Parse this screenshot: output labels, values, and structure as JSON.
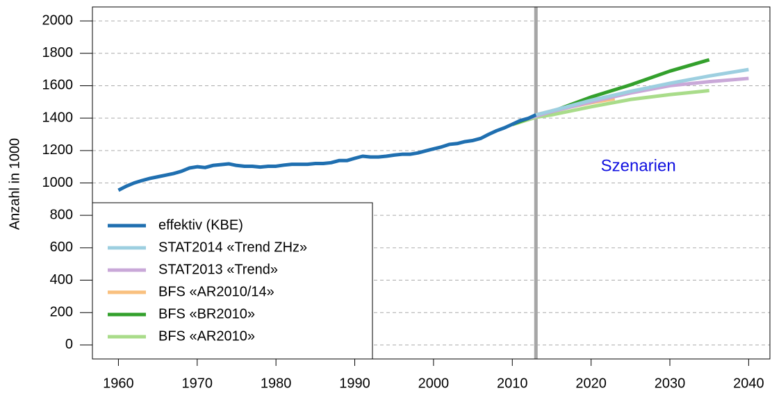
{
  "chart_data": {
    "type": "line",
    "y_label": "Anzahl in 1000",
    "annotation": {
      "text": "Szenarien",
      "x": 2026,
      "y": 1100,
      "color": "#1010e0"
    },
    "vline": {
      "x": 2013,
      "color": "#a6a6a6"
    },
    "xlim": [
      1956.7,
      2042.7
    ],
    "ylim": [
      -86,
      2086
    ],
    "xticks": [
      1960,
      1970,
      1980,
      1990,
      2000,
      2010,
      2020,
      2030,
      2040
    ],
    "yticks": [
      0,
      200,
      400,
      600,
      800,
      1000,
      1200,
      1400,
      1600,
      1800,
      2000
    ],
    "grid": true,
    "legend": "lower left",
    "series": [
      {
        "name": "effektiv (KBE)",
        "color": "#1f6fb0",
        "x": [
          1960,
          1961,
          1962,
          1963,
          1964,
          1965,
          1966,
          1967,
          1968,
          1969,
          1970,
          1971,
          1972,
          1973,
          1974,
          1975,
          1976,
          1977,
          1978,
          1979,
          1980,
          1981,
          1982,
          1983,
          1984,
          1985,
          1986,
          1987,
          1988,
          1989,
          1990,
          1991,
          1992,
          1993,
          1994,
          1995,
          1996,
          1997,
          1998,
          1999,
          2000,
          2001,
          2002,
          2003,
          2004,
          2005,
          2006,
          2007,
          2008,
          2009,
          2010,
          2011,
          2012,
          2013
        ],
        "values": [
          955,
          980,
          1000,
          1015,
          1028,
          1038,
          1048,
          1058,
          1072,
          1092,
          1100,
          1095,
          1108,
          1113,
          1118,
          1108,
          1103,
          1103,
          1098,
          1103,
          1103,
          1110,
          1115,
          1115,
          1115,
          1120,
          1120,
          1125,
          1138,
          1138,
          1152,
          1165,
          1160,
          1160,
          1165,
          1172,
          1177,
          1177,
          1185,
          1198,
          1210,
          1222,
          1238,
          1243,
          1255,
          1262,
          1275,
          1300,
          1322,
          1340,
          1362,
          1385,
          1398,
          1420
        ]
      },
      {
        "name": "STAT2014 «Trend ZHz»",
        "color": "#9dcfe0",
        "x": [
          2013,
          2015,
          2020,
          2025,
          2030,
          2035,
          2040
        ],
        "values": [
          1420,
          1445,
          1510,
          1565,
          1615,
          1660,
          1700
        ]
      },
      {
        "name": "STAT2013 «Trend»",
        "color": "#c9a8d8",
        "x": [
          2012,
          2015,
          2020,
          2025,
          2030,
          2035,
          2040
        ],
        "values": [
          1398,
          1440,
          1500,
          1555,
          1600,
          1625,
          1645
        ]
      },
      {
        "name": "BFS «AR2010/14»",
        "color": "#f9c07f",
        "x": [
          2013,
          2015,
          2020,
          2023
        ],
        "values": [
          1420,
          1445,
          1495,
          1520
        ]
      },
      {
        "name": "BFS «BR2010»",
        "color": "#33a02c",
        "x": [
          2010,
          2013,
          2015,
          2020,
          2025,
          2030,
          2035
        ],
        "values": [
          1362,
          1415,
          1440,
          1530,
          1605,
          1690,
          1760
        ]
      },
      {
        "name": "BFS «AR2010»",
        "color": "#a9dc8a",
        "x": [
          2010,
          2013,
          2015,
          2020,
          2025,
          2030,
          2035
        ],
        "values": [
          1360,
          1405,
          1420,
          1470,
          1515,
          1545,
          1570
        ]
      }
    ]
  }
}
